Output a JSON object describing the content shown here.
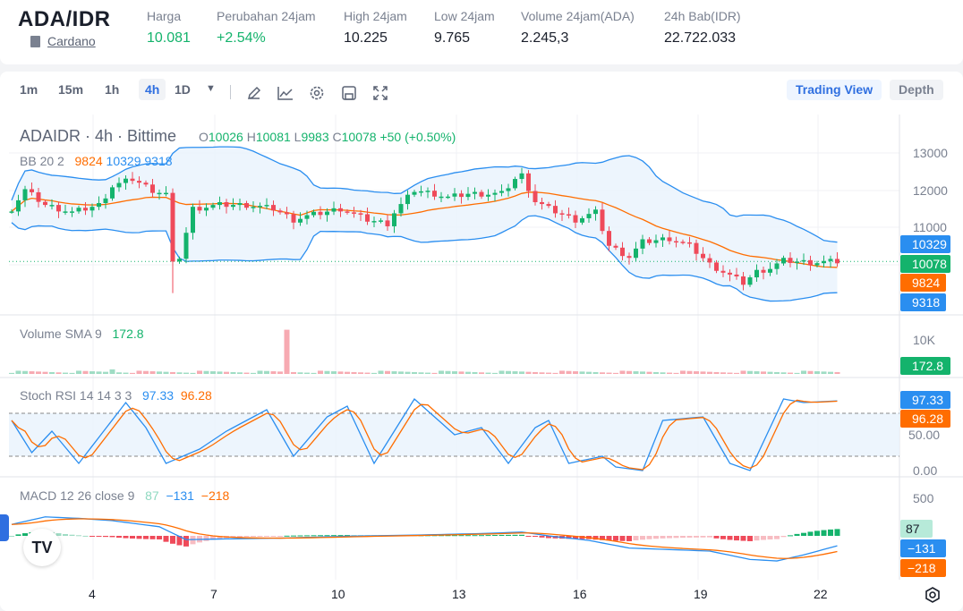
{
  "header": {
    "pair": "ADA/IDR",
    "coin_link": "Cardano",
    "stats": [
      {
        "label": "Harga",
        "value": "10.081",
        "color": "green"
      },
      {
        "label": "Perubahan 24jam",
        "value": "+2.54%",
        "color": "green"
      },
      {
        "label": "High 24jam",
        "value": "10.225"
      },
      {
        "label": "Low 24jam",
        "value": "9.765"
      },
      {
        "label": "Volume 24jam(ADA)",
        "value": "2.245,3"
      },
      {
        "label": "24h Bab(IDR)",
        "value": "22.722.033"
      }
    ]
  },
  "toolbar": {
    "intervals": [
      "1m",
      "15m",
      "1h",
      "4h",
      "1D"
    ],
    "active_interval": "4h",
    "trading_view": "Trading View",
    "depth": "Depth"
  },
  "legend": {
    "symbol": "ADAIDR · 4h · Bittime",
    "o_label": "O",
    "o": "10026",
    "h_label": "H",
    "h": "10081",
    "l_label": "L",
    "l": "9983",
    "c_label": "C",
    "c": "10078",
    "change": "+50 (+0.50%)",
    "bb": "BB 20 2",
    "bb_mid": "9824",
    "bb_up": "10329",
    "bb_low": "9318",
    "vol": "Volume SMA 9",
    "vol_val": "172.8",
    "stoch": "Stoch RSI 14 14 3 3",
    "stoch_k": "97.33",
    "stoch_d": "96.28",
    "macd": "MACD 12 26 close 9",
    "macd_hist": "87",
    "macd_line": "−131",
    "macd_signal": "−218"
  },
  "axes": {
    "price": [
      "13000",
      "12000",
      "11000"
    ],
    "volume": [
      "10K"
    ],
    "stoch": [
      "50.00",
      "0.00"
    ],
    "macd": [
      "500"
    ],
    "dates": [
      "4",
      "7",
      "10",
      "13",
      "16",
      "19",
      "22"
    ]
  },
  "tags": {
    "bb_up": "10329",
    "last": "10078",
    "bb_mid": "9824",
    "bb_low": "9318",
    "vol": "172.8",
    "stoch_k": "97.33",
    "stoch_d": "96.28",
    "macd_hist": "87",
    "macd_line": "−131",
    "macd_signal": "−218"
  },
  "colors": {
    "up": "#14b36c",
    "down": "#ef4a5a",
    "blue": "#2a8ef0",
    "orange": "#ff6d00"
  },
  "chart_data": {
    "type": "candlestick",
    "close_path": [
      [
        0,
        11500
      ],
      [
        2,
        12000
      ],
      [
        5,
        11600
      ],
      [
        9,
        11400
      ],
      [
        13,
        11600
      ],
      [
        15,
        12100
      ],
      [
        18,
        12300
      ],
      [
        21,
        12000
      ],
      [
        23,
        11900
      ],
      [
        24,
        10000
      ],
      [
        25,
        10200
      ],
      [
        27,
        11500
      ],
      [
        31,
        11600
      ],
      [
        35,
        11600
      ],
      [
        39,
        11500
      ],
      [
        42,
        11200
      ],
      [
        44,
        11300
      ],
      [
        49,
        11500
      ],
      [
        53,
        11200
      ],
      [
        56,
        11100
      ],
      [
        57,
        11400
      ],
      [
        60,
        12000
      ],
      [
        63,
        11900
      ],
      [
        65,
        11800
      ],
      [
        68,
        11900
      ],
      [
        73,
        11900
      ],
      [
        75,
        12300
      ],
      [
        76,
        12400
      ],
      [
        78,
        11700
      ],
      [
        80,
        11500
      ],
      [
        84,
        11200
      ],
      [
        87,
        11400
      ],
      [
        89,
        10500
      ],
      [
        92,
        10200
      ],
      [
        94,
        10600
      ],
      [
        98,
        10700
      ],
      [
        101,
        10500
      ],
      [
        104,
        10000
      ],
      [
        106,
        9800
      ],
      [
        109,
        9500
      ],
      [
        111,
        9800
      ],
      [
        113,
        9900
      ],
      [
        115,
        10100
      ],
      [
        119,
        10050
      ],
      [
        123,
        10078
      ]
    ],
    "stoch_k_path": [
      [
        0,
        70
      ],
      [
        3,
        25
      ],
      [
        6,
        55
      ],
      [
        10,
        10
      ],
      [
        17,
        95
      ],
      [
        20,
        60
      ],
      [
        23,
        10
      ],
      [
        28,
        30
      ],
      [
        32,
        55
      ],
      [
        38,
        85
      ],
      [
        42,
        20
      ],
      [
        47,
        75
      ],
      [
        50,
        90
      ],
      [
        54,
        10
      ],
      [
        60,
        100
      ],
      [
        66,
        50
      ],
      [
        70,
        60
      ],
      [
        74,
        10
      ],
      [
        78,
        60
      ],
      [
        80,
        70
      ],
      [
        83,
        10
      ],
      [
        88,
        20
      ],
      [
        90,
        5
      ],
      [
        94,
        0
      ],
      [
        97,
        70
      ],
      [
        103,
        75
      ],
      [
        107,
        10
      ],
      [
        110,
        0
      ],
      [
        115,
        100
      ],
      [
        118,
        95
      ],
      [
        123,
        97.33
      ]
    ],
    "macd_path": [
      [
        0,
        150
      ],
      [
        5,
        250
      ],
      [
        10,
        230
      ],
      [
        15,
        200
      ],
      [
        22,
        120
      ],
      [
        26,
        -50
      ],
      [
        32,
        -40
      ],
      [
        40,
        -30
      ],
      [
        50,
        -5
      ],
      [
        60,
        10
      ],
      [
        70,
        30
      ],
      [
        76,
        50
      ],
      [
        80,
        0
      ],
      [
        86,
        -60
      ],
      [
        92,
        -160
      ],
      [
        98,
        -180
      ],
      [
        104,
        -200
      ],
      [
        110,
        -310
      ],
      [
        114,
        -330
      ],
      [
        118,
        -250
      ],
      [
        123,
        -131
      ]
    ],
    "volume_spike_index": 41
  }
}
